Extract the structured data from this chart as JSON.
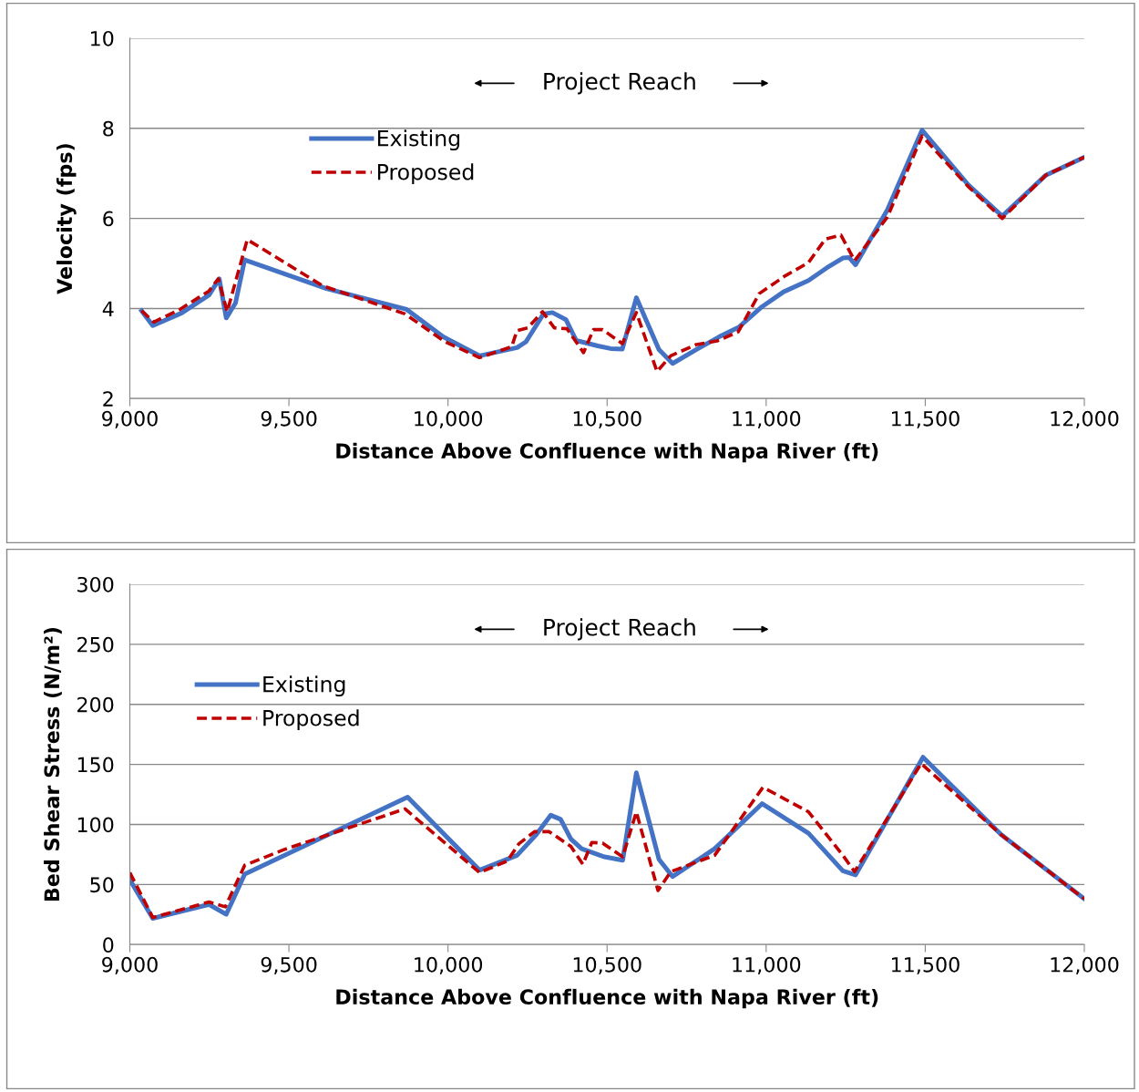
{
  "chart_data": [
    {
      "type": "line",
      "xlabel": "Distance Above Confluence with Napa River (ft)",
      "ylabel": "Velocity (fps)",
      "annotations": [
        "Project Reach"
      ],
      "xlim": [
        9000,
        12000
      ],
      "xticks": [
        {
          "value": 9000,
          "label": "9,000"
        },
        {
          "value": 9500,
          "label": "9,500"
        },
        {
          "value": 10000,
          "label": "10,000"
        },
        {
          "value": 10500,
          "label": "10,500"
        },
        {
          "value": 11000,
          "label": "11,000"
        },
        {
          "value": 11500,
          "label": "11,500"
        },
        {
          "value": 12000,
          "label": "12,000"
        }
      ],
      "ylim": [
        2,
        10
      ],
      "yticks": [
        2,
        4,
        6,
        8,
        10
      ],
      "grid": "y",
      "legend": "top left",
      "series": [
        {
          "name": "Existing",
          "color": "#4472c4",
          "line_style": "solid",
          "x": [
            9037,
            9072,
            9163,
            9249,
            9281,
            9303,
            9332,
            9361,
            9618,
            9870,
            9985,
            10099,
            10217,
            10245,
            10300,
            10328,
            10371,
            10403,
            10471,
            10511,
            10548,
            10592,
            10663,
            10706,
            10781,
            10852,
            10915,
            10987,
            11055,
            11133,
            11190,
            11241,
            11261,
            11281,
            11381,
            11490,
            11636,
            11742,
            11879,
            12000
          ],
          "values": [
            3.95,
            3.62,
            3.9,
            4.3,
            4.66,
            3.79,
            4.12,
            5.08,
            4.44,
            3.98,
            3.37,
            2.95,
            3.13,
            3.26,
            3.88,
            3.91,
            3.75,
            3.29,
            3.17,
            3.11,
            3.1,
            4.24,
            3.09,
            2.78,
            3.09,
            3.37,
            3.59,
            4.04,
            4.37,
            4.62,
            4.9,
            5.12,
            5.13,
            4.97,
            6.19,
            7.96,
            6.74,
            6.05,
            6.96,
            7.36
          ]
        },
        {
          "name": "Proposed",
          "color": "#c00000",
          "line_style": "dashed",
          "x": [
            9037,
            9075,
            9155,
            9249,
            9278,
            9306,
            9369,
            9607,
            9865,
            9991,
            10099,
            10200,
            10217,
            10251,
            10297,
            10334,
            10374,
            10426,
            10457,
            10486,
            10548,
            10592,
            10657,
            10700,
            10781,
            10846,
            10912,
            10978,
            11061,
            11133,
            11186,
            11235,
            11278,
            11381,
            11490,
            11636,
            11742,
            11879,
            12000
          ],
          "values": [
            3.95,
            3.7,
            3.97,
            4.39,
            4.66,
            3.93,
            5.53,
            4.5,
            3.88,
            3.26,
            2.91,
            3.15,
            3.51,
            3.57,
            3.93,
            3.57,
            3.55,
            3.02,
            3.53,
            3.53,
            3.22,
            3.91,
            2.6,
            2.95,
            3.2,
            3.28,
            3.48,
            4.33,
            4.73,
            5.02,
            5.54,
            5.63,
            5.06,
            6.03,
            7.83,
            6.7,
            6.0,
            6.96,
            7.36
          ]
        }
      ]
    },
    {
      "type": "line",
      "xlabel": "Distance Above Confluence with Napa River (ft)",
      "ylabel": "Bed Shear Stress (N/m²)",
      "annotations": [
        "Project Reach"
      ],
      "xlim": [
        9000,
        12000
      ],
      "xticks": [
        {
          "value": 9000,
          "label": "9,000"
        },
        {
          "value": 9500,
          "label": "9,500"
        },
        {
          "value": 10000,
          "label": "10,000"
        },
        {
          "value": 10500,
          "label": "10,500"
        },
        {
          "value": 11000,
          "label": "11,000"
        },
        {
          "value": 11500,
          "label": "11,500"
        },
        {
          "value": 12000,
          "label": "12,000"
        }
      ],
      "ylim": [
        0,
        300
      ],
      "yticks": [
        0,
        50,
        100,
        150,
        200,
        250,
        300
      ],
      "grid": "y",
      "legend": "top left",
      "series": [
        {
          "name": "Existing",
          "color": "#4472c4",
          "line_style": "solid",
          "x": [
            9000,
            9072,
            9249,
            9303,
            9361,
            9873,
            10099,
            10217,
            10277,
            10323,
            10354,
            10386,
            10420,
            10492,
            10549,
            10592,
            10663,
            10706,
            10838,
            10987,
            11133,
            11241,
            11281,
            11493,
            11739,
            12000
          ],
          "values": [
            54,
            21.8,
            33.4,
            25.2,
            58.6,
            122.7,
            62,
            74.3,
            91.4,
            107.7,
            104.3,
            88,
            79.8,
            73,
            70.2,
            143,
            71,
            56.6,
            79.8,
            117.3,
            92.7,
            61.4,
            58,
            156,
            91.4,
            38
          ]
        },
        {
          "name": "Proposed",
          "color": "#c00000",
          "line_style": "dashed",
          "x": [
            9000,
            9072,
            9249,
            9300,
            9361,
            9484,
            9865,
            10099,
            10186,
            10223,
            10272,
            10318,
            10386,
            10424,
            10452,
            10486,
            10549,
            10592,
            10660,
            10700,
            10838,
            10990,
            11133,
            11241,
            11278,
            11487,
            11739,
            12000
          ],
          "values": [
            60,
            22.5,
            35.5,
            31.4,
            66,
            79,
            113,
            60,
            69.5,
            84,
            94,
            94,
            81.8,
            66.8,
            85,
            84.5,
            73,
            110.5,
            45,
            60.7,
            74.3,
            131,
            110.5,
            74.3,
            60.7,
            150.7,
            91.4,
            38
          ]
        }
      ]
    }
  ]
}
